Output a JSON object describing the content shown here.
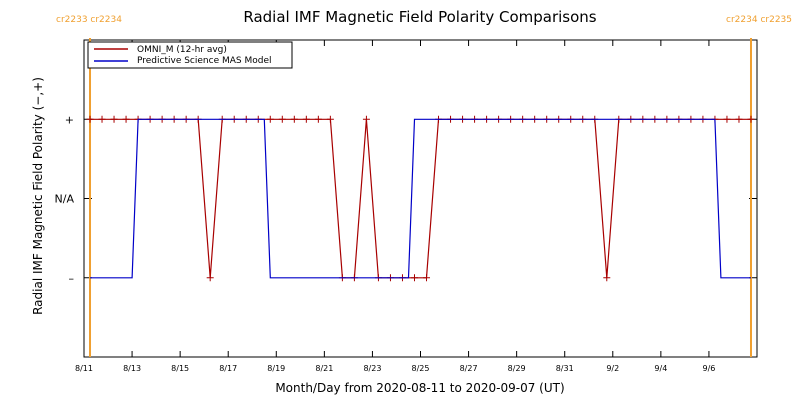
{
  "chart_data": {
    "type": "line",
    "title": "Radial IMF Magnetic Field Polarity Comparisons",
    "xlabel": "Month/Day from 2020-08-11 to 2020-09-07 (UT)",
    "ylabel": "Radial IMF Magnetic Field Polarity (−,+)",
    "x_unit": "date",
    "xlim": [
      "2020-08-11T00:00",
      "2020-09-08T00:00"
    ],
    "x_ticks": [
      {
        "date": "2020-08-11",
        "label": "8/11"
      },
      {
        "date": "2020-08-13",
        "label": "8/13"
      },
      {
        "date": "2020-08-15",
        "label": "8/15"
      },
      {
        "date": "2020-08-17",
        "label": "8/17"
      },
      {
        "date": "2020-08-19",
        "label": "8/19"
      },
      {
        "date": "2020-08-21",
        "label": "8/21"
      },
      {
        "date": "2020-08-23",
        "label": "8/23"
      },
      {
        "date": "2020-08-25",
        "label": "8/25"
      },
      {
        "date": "2020-08-27",
        "label": "8/27"
      },
      {
        "date": "2020-08-29",
        "label": "8/29"
      },
      {
        "date": "2020-08-31",
        "label": "8/31"
      },
      {
        "date": "2020-09-02",
        "label": "9/2"
      },
      {
        "date": "2020-09-04",
        "label": "9/4"
      },
      {
        "date": "2020-09-06",
        "label": "9/6"
      }
    ],
    "y_ticks": [
      {
        "value": 1,
        "label": "+"
      },
      {
        "value": 0,
        "label": "N/A"
      },
      {
        "value": -1,
        "label": "–"
      }
    ],
    "ylim": [
      -2,
      2
    ],
    "legend_position": "top-left",
    "carrington_markers": [
      {
        "date": "2020-08-11T06:00",
        "left_label": "cr2233",
        "right_label": "cr2234",
        "align": "left"
      },
      {
        "date": "2020-09-07T18:00",
        "left_label": "cr2234",
        "right_label": "cr2235",
        "align": "right"
      }
    ],
    "marker_color": "#f0a030",
    "series": [
      {
        "name": "OMNI_M (12-hr avg)",
        "color": "#a80000",
        "marker": "plus",
        "x": [
          "2020-08-11T06:00",
          "2020-08-11T18:00",
          "2020-08-12T06:00",
          "2020-08-12T18:00",
          "2020-08-13T06:00",
          "2020-08-13T18:00",
          "2020-08-14T06:00",
          "2020-08-14T18:00",
          "2020-08-15T06:00",
          "2020-08-15T18:00",
          "2020-08-16T06:00",
          "2020-08-16T18:00",
          "2020-08-17T06:00",
          "2020-08-17T18:00",
          "2020-08-18T06:00",
          "2020-08-18T18:00",
          "2020-08-19T06:00",
          "2020-08-19T18:00",
          "2020-08-20T06:00",
          "2020-08-20T18:00",
          "2020-08-21T06:00",
          "2020-08-21T18:00",
          "2020-08-22T06:00",
          "2020-08-22T18:00",
          "2020-08-23T06:00",
          "2020-08-23T18:00",
          "2020-08-24T06:00",
          "2020-08-24T18:00",
          "2020-08-25T06:00",
          "2020-08-25T18:00",
          "2020-08-26T06:00",
          "2020-08-26T18:00",
          "2020-08-27T06:00",
          "2020-08-27T18:00",
          "2020-08-28T06:00",
          "2020-08-28T18:00",
          "2020-08-29T06:00",
          "2020-08-29T18:00",
          "2020-08-30T06:00",
          "2020-08-30T18:00",
          "2020-08-31T06:00",
          "2020-08-31T18:00",
          "2020-09-01T06:00",
          "2020-09-01T18:00",
          "2020-09-02T06:00",
          "2020-09-02T18:00",
          "2020-09-03T06:00",
          "2020-09-03T18:00",
          "2020-09-04T06:00",
          "2020-09-04T18:00",
          "2020-09-05T06:00",
          "2020-09-05T18:00",
          "2020-09-06T06:00",
          "2020-09-06T18:00",
          "2020-09-07T06:00",
          "2020-09-07T18:00"
        ],
        "values": [
          1,
          1,
          1,
          1,
          1,
          1,
          1,
          1,
          1,
          1,
          -1,
          1,
          1,
          1,
          1,
          1,
          1,
          1,
          1,
          1,
          1,
          -1,
          -1,
          1,
          -1,
          -1,
          -1,
          -1,
          -1,
          1,
          1,
          1,
          1,
          1,
          1,
          1,
          1,
          1,
          1,
          1,
          1,
          1,
          1,
          -1,
          1,
          1,
          1,
          1,
          1,
          1,
          1,
          1,
          1,
          1,
          1,
          1
        ]
      },
      {
        "name": "Predictive Science MAS Model",
        "color": "#0000c8",
        "marker": "none",
        "x": [
          "2020-08-11T06:00",
          "2020-08-13T00:00",
          "2020-08-13T06:00",
          "2020-08-18T12:00",
          "2020-08-18T18:00",
          "2020-08-24T12:00",
          "2020-08-24T18:00",
          "2020-09-06T06:00",
          "2020-09-06T12:00",
          "2020-09-07T18:00"
        ],
        "values": [
          -1,
          -1,
          1,
          1,
          -1,
          -1,
          1,
          1,
          -1,
          -1
        ]
      }
    ]
  }
}
